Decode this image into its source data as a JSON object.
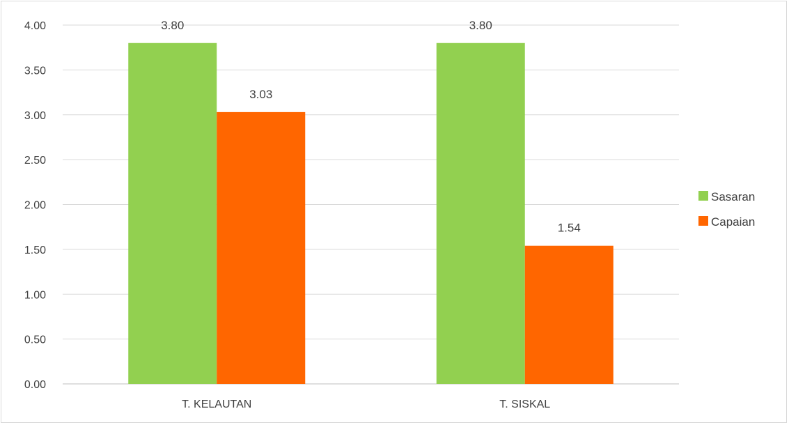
{
  "chart_data": {
    "type": "bar",
    "categories": [
      "T. KELAUTAN",
      "T. SISKAL"
    ],
    "series": [
      {
        "name": "Sasaran",
        "values": [
          3.8,
          3.8
        ],
        "color": "#92d050"
      },
      {
        "name": "Capaian",
        "values": [
          3.03,
          1.54
        ],
        "color": "#ff6600"
      }
    ],
    "data_labels": [
      "3.80",
      "3.03",
      "3.80",
      "1.54"
    ],
    "ylim": [
      0,
      4
    ],
    "yticks": [
      "0.00",
      "0.50",
      "1.00",
      "1.50",
      "2.00",
      "2.50",
      "3.00",
      "3.50",
      "4.00"
    ],
    "grid": true,
    "legend_position": "right",
    "title": "",
    "xlabel": "",
    "ylabel": ""
  }
}
